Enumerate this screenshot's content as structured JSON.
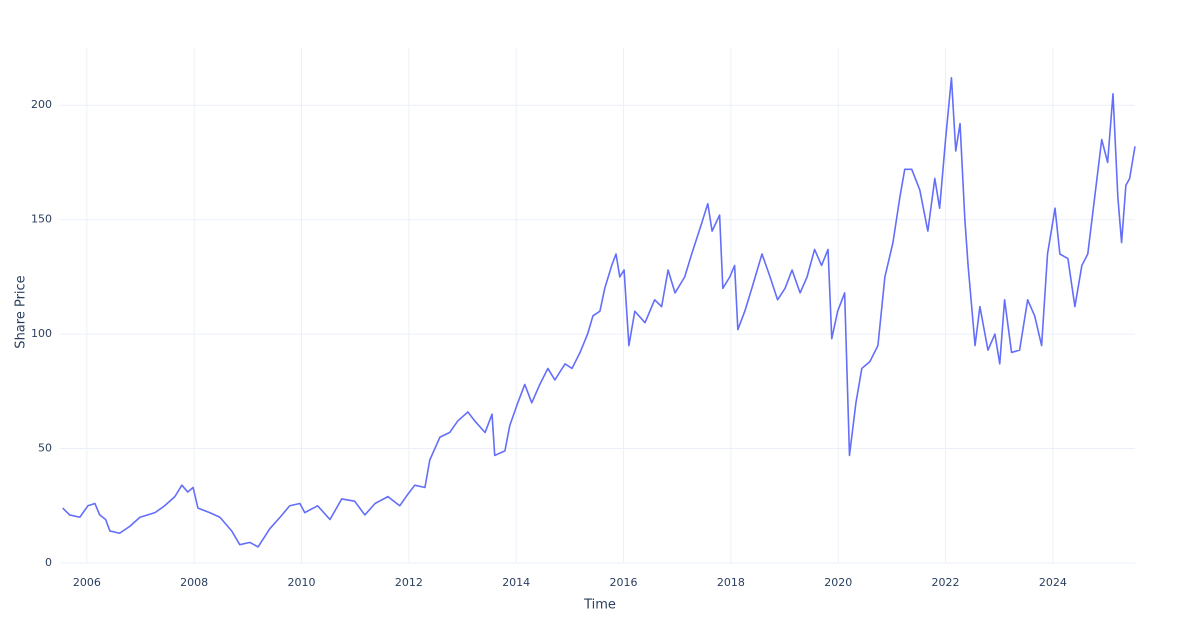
{
  "chart_data": {
    "type": "line",
    "x_label": "Time",
    "y_label": "Share Price",
    "xlim": [
      2005.5,
      2025.53
    ],
    "ylim": [
      0,
      225
    ],
    "xticks": [
      2006,
      2008,
      2010,
      2012,
      2014,
      2016,
      2018,
      2020,
      2022,
      2024
    ],
    "yticks": [
      0,
      50,
      100,
      150,
      200
    ],
    "grid": true,
    "series": [
      {
        "color": "#636efa",
        "x": [
          2005.55,
          2005.68,
          2005.87,
          2006.02,
          2006.15,
          2006.24,
          2006.35,
          2006.43,
          2006.61,
          2006.8,
          2006.99,
          2007.27,
          2007.45,
          2007.64,
          2007.77,
          2007.88,
          2007.98,
          2008.07,
          2008.29,
          2008.48,
          2008.7,
          2008.85,
          2009.04,
          2009.19,
          2009.41,
          2009.6,
          2009.78,
          2009.97,
          2010.06,
          2010.3,
          2010.53,
          2010.75,
          2010.99,
          2011.18,
          2011.37,
          2011.61,
          2011.83,
          2011.98,
          2012.11,
          2012.3,
          2012.39,
          2012.58,
          2012.76,
          2012.91,
          2013.1,
          2013.23,
          2013.42,
          2013.55,
          2013.6,
          2013.79,
          2013.88,
          2014.03,
          2014.16,
          2014.29,
          2014.44,
          2014.59,
          2014.72,
          2014.91,
          2015.04,
          2015.19,
          2015.33,
          2015.43,
          2015.56,
          2015.65,
          2015.78,
          2015.86,
          2015.93,
          2016.01,
          2016.1,
          2016.21,
          2016.4,
          2016.58,
          2016.71,
          2016.83,
          2016.96,
          2017.14,
          2017.27,
          2017.45,
          2017.57,
          2017.65,
          2017.79,
          2017.85,
          2017.98,
          2018.07,
          2018.13,
          2018.26,
          2018.39,
          2018.58,
          2018.73,
          2018.87,
          2019.01,
          2019.14,
          2019.29,
          2019.42,
          2019.56,
          2019.69,
          2019.81,
          2019.88,
          2019.99,
          2020.12,
          2020.21,
          2020.33,
          2020.44,
          2020.59,
          2020.74,
          2020.87,
          2021.02,
          2021.15,
          2021.24,
          2021.37,
          2021.52,
          2021.67,
          2021.8,
          2021.89,
          2022.0,
          2022.11,
          2022.19,
          2022.27,
          2022.36,
          2022.42,
          2022.55,
          2022.64,
          2022.79,
          2022.92,
          2023.01,
          2023.1,
          2023.23,
          2023.38,
          2023.53,
          2023.66,
          2023.79,
          2023.9,
          2024.04,
          2024.13,
          2024.28,
          2024.41,
          2024.54,
          2024.65,
          2024.78,
          2024.91,
          2025.02,
          2025.12,
          2025.21,
          2025.28,
          2025.36,
          2025.43,
          2025.53
        ],
        "values": [
          24,
          21,
          20,
          25,
          26,
          21,
          19,
          14,
          13,
          16,
          20,
          22,
          25,
          29,
          34,
          31,
          33,
          24,
          22,
          20,
          14,
          8,
          9,
          7,
          15,
          20,
          25,
          26,
          22,
          25,
          19,
          28,
          27,
          21,
          26,
          29,
          25,
          30,
          34,
          33,
          45,
          55,
          57,
          62,
          66,
          62,
          57,
          65,
          47,
          49,
          60,
          70,
          78,
          70,
          78,
          85,
          80,
          87,
          85,
          92,
          100,
          108,
          110,
          120,
          130,
          135,
          125,
          128,
          95,
          110,
          105,
          115,
          112,
          128,
          118,
          125,
          135,
          148,
          157,
          145,
          152,
          120,
          125,
          130,
          102,
          110,
          120,
          135,
          125,
          115,
          120,
          128,
          118,
          125,
          137,
          130,
          137,
          98,
          110,
          118,
          47,
          70,
          85,
          88,
          95,
          125,
          140,
          160,
          172,
          172,
          163,
          145,
          168,
          155,
          185,
          212,
          180,
          192,
          150,
          130,
          95,
          112,
          93,
          100,
          87,
          115,
          92,
          93,
          115,
          108,
          95,
          135,
          155,
          135,
          133,
          112,
          130,
          135,
          160,
          185,
          175,
          205,
          160,
          140,
          165,
          168,
          182
        ]
      }
    ]
  }
}
